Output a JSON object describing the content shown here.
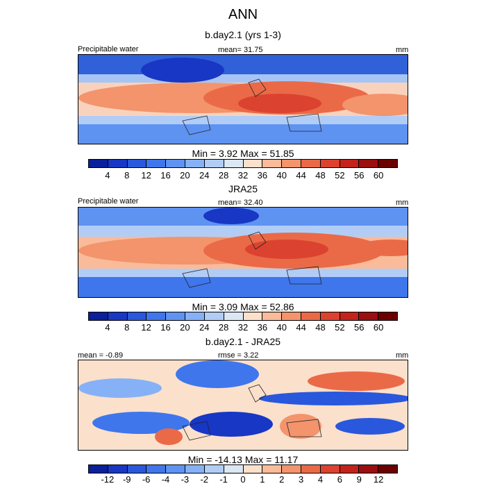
{
  "title": "ANN",
  "chart_data": [
    {
      "type": "heatmap",
      "title": "b.day2.1 (yrs 1-3)",
      "left_label": "Precipitable water",
      "center_label": "mean=  31.75",
      "right_label": "mm",
      "minmax_label": "Min =   3.92 Max =  51.85",
      "min": 3.92,
      "max": 51.85,
      "mean": 31.75,
      "colorbar_ticks": [
        "4",
        "8",
        "12",
        "16",
        "20",
        "24",
        "28",
        "32",
        "36",
        "40",
        "44",
        "48",
        "52",
        "56",
        "60"
      ],
      "colorbar_colors": [
        "#0a1f9a",
        "#1737c4",
        "#2a58dc",
        "#3f76ec",
        "#5f93f2",
        "#86b1f6",
        "#b1cdf6",
        "#dbe7f3",
        "#fbe0cc",
        "#f9bb9a",
        "#f3946c",
        "#ea6a47",
        "#dc4230",
        "#c3231b",
        "#9a0f0f",
        "#6b0000"
      ],
      "colorbar_colors_note": "colors from bottom to top of scale"
    },
    {
      "type": "heatmap",
      "title": "JRA25",
      "left_label": "Precipitable water",
      "center_label": "mean=  32.40",
      "right_label": "mm",
      "minmax_label": "Min =   3.09 Max =  52.86",
      "min": 3.09,
      "max": 52.86,
      "mean": 32.4,
      "colorbar_ticks": [
        "4",
        "8",
        "12",
        "16",
        "20",
        "24",
        "28",
        "32",
        "36",
        "40",
        "44",
        "48",
        "52",
        "56",
        "60"
      ],
      "colorbar_colors": [
        "#0a1f9a",
        "#1737c4",
        "#2a58dc",
        "#3f76ec",
        "#5f93f2",
        "#86b1f6",
        "#b1cdf6",
        "#dbe7f3",
        "#fbe0cc",
        "#f9bb9a",
        "#f3946c",
        "#ea6a47",
        "#dc4230",
        "#c3231b",
        "#9a0f0f",
        "#6b0000"
      ]
    },
    {
      "type": "heatmap",
      "title": "b.day2.1 - JRA25",
      "left_label": "mean =  -0.89",
      "center_label": "rmse =   3.22",
      "right_label": "mm",
      "minmax_label": "Min = -14.13 Max =  11.17",
      "min": -14.13,
      "max": 11.17,
      "mean": -0.89,
      "rmse": 3.22,
      "colorbar_ticks": [
        "-12",
        "-9",
        "-6",
        "-4",
        "-3",
        "-2",
        "-1",
        "0",
        "1",
        "2",
        "3",
        "4",
        "6",
        "9",
        "12"
      ],
      "colorbar_colors": [
        "#0a1f9a",
        "#1737c4",
        "#2a58dc",
        "#3f76ec",
        "#5f93f2",
        "#86b1f6",
        "#b1cdf6",
        "#dbe7f3",
        "#fbe0cc",
        "#f9bb9a",
        "#f3946c",
        "#ea6a47",
        "#dc4230",
        "#c3231b",
        "#9a0f0f",
        "#6b0000"
      ]
    }
  ]
}
